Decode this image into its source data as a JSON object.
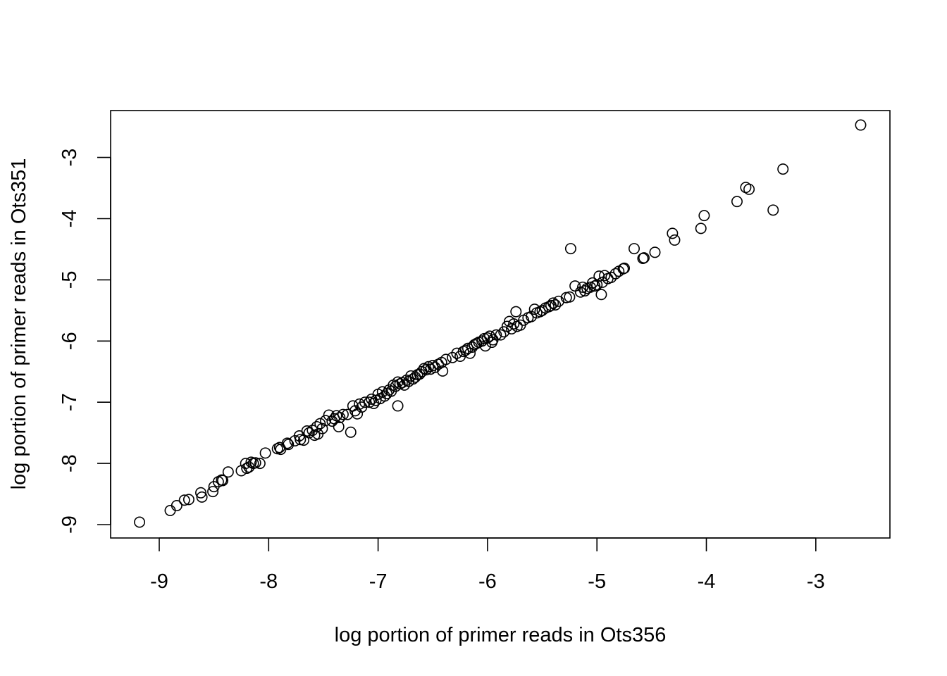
{
  "chart_data": {
    "type": "scatter",
    "title": "",
    "xlabel": "log portion of primer reads in Ots356",
    "ylabel": "log portion of primer reads in Ots351",
    "xlim": [
      -9.45,
      -2.3
    ],
    "ylim": [
      -9.2,
      -2.2
    ],
    "xticks": [
      -9,
      -8,
      -7,
      -6,
      -5,
      -4,
      -3
    ],
    "yticks": [
      -9,
      -8,
      -7,
      -6,
      -5,
      -4,
      -3
    ],
    "xtick_labels": [
      "-9",
      "-8",
      "-7",
      "-6",
      "-5",
      "-4",
      "-3"
    ],
    "ytick_labels": [
      "-9",
      "-8",
      "-7",
      "-6",
      "-5",
      "-4",
      "-3"
    ],
    "grid": false,
    "marker": "open-circle",
    "series": [
      {
        "points": [
          [
            -9.18,
            -8.96
          ],
          [
            -8.9,
            -8.77
          ],
          [
            -8.84,
            -8.69
          ],
          [
            -8.77,
            -8.6
          ],
          [
            -8.73,
            -8.59
          ],
          [
            -8.62,
            -8.48
          ],
          [
            -8.61,
            -8.55
          ],
          [
            -8.51,
            -8.46
          ],
          [
            -8.5,
            -8.38
          ],
          [
            -8.46,
            -8.3
          ],
          [
            -8.43,
            -8.27
          ],
          [
            -8.42,
            -8.28
          ],
          [
            -8.37,
            -8.14
          ],
          [
            -8.25,
            -8.12
          ],
          [
            -8.21,
            -8.0
          ],
          [
            -8.2,
            -8.08
          ],
          [
            -8.18,
            -8.06
          ],
          [
            -8.16,
            -7.98
          ],
          [
            -8.14,
            -8.0
          ],
          [
            -8.12,
            -7.99
          ],
          [
            -8.08,
            -8.0
          ],
          [
            -8.03,
            -7.83
          ],
          [
            -7.92,
            -7.76
          ],
          [
            -7.9,
            -7.74
          ],
          [
            -7.89,
            -7.77
          ],
          [
            -7.83,
            -7.67
          ],
          [
            -7.82,
            -7.69
          ],
          [
            -7.76,
            -7.63
          ],
          [
            -7.72,
            -7.55
          ],
          [
            -7.71,
            -7.61
          ],
          [
            -7.68,
            -7.62
          ],
          [
            -7.65,
            -7.47
          ],
          [
            -7.63,
            -7.5
          ],
          [
            -7.6,
            -7.46
          ],
          [
            -7.58,
            -7.54
          ],
          [
            -7.56,
            -7.4
          ],
          [
            -7.55,
            -7.52
          ],
          [
            -7.53,
            -7.35
          ],
          [
            -7.51,
            -7.43
          ],
          [
            -7.48,
            -7.3
          ],
          [
            -7.45,
            -7.21
          ],
          [
            -7.42,
            -7.31
          ],
          [
            -7.4,
            -7.27
          ],
          [
            -7.38,
            -7.22
          ],
          [
            -7.36,
            -7.4
          ],
          [
            -7.35,
            -7.25
          ],
          [
            -7.32,
            -7.2
          ],
          [
            -7.28,
            -7.2
          ],
          [
            -7.25,
            -7.49
          ],
          [
            -7.23,
            -7.06
          ],
          [
            -7.21,
            -7.14
          ],
          [
            -7.19,
            -7.19
          ],
          [
            -7.17,
            -7.03
          ],
          [
            -7.15,
            -7.08
          ],
          [
            -7.12,
            -7.0
          ],
          [
            -7.08,
            -7.0
          ],
          [
            -7.06,
            -6.95
          ],
          [
            -7.04,
            -7.02
          ],
          [
            -7.02,
            -6.97
          ],
          [
            -7.0,
            -6.87
          ],
          [
            -6.98,
            -6.94
          ],
          [
            -6.96,
            -6.83
          ],
          [
            -6.94,
            -6.9
          ],
          [
            -6.92,
            -6.86
          ],
          [
            -6.9,
            -6.8
          ],
          [
            -6.88,
            -6.82
          ],
          [
            -6.86,
            -6.72
          ],
          [
            -6.84,
            -6.74
          ],
          [
            -6.82,
            -6.67
          ],
          [
            -6.82,
            -7.06
          ],
          [
            -6.8,
            -6.7
          ],
          [
            -6.78,
            -6.68
          ],
          [
            -6.76,
            -6.72
          ],
          [
            -6.74,
            -6.64
          ],
          [
            -6.72,
            -6.66
          ],
          [
            -6.7,
            -6.57
          ],
          [
            -6.68,
            -6.62
          ],
          [
            -6.66,
            -6.59
          ],
          [
            -6.64,
            -6.55
          ],
          [
            -6.62,
            -6.54
          ],
          [
            -6.6,
            -6.5
          ],
          [
            -6.58,
            -6.45
          ],
          [
            -6.56,
            -6.47
          ],
          [
            -6.54,
            -6.42
          ],
          [
            -6.52,
            -6.46
          ],
          [
            -6.5,
            -6.4
          ],
          [
            -6.48,
            -6.43
          ],
          [
            -6.45,
            -6.38
          ],
          [
            -6.42,
            -6.35
          ],
          [
            -6.41,
            -6.49
          ],
          [
            -6.38,
            -6.3
          ],
          [
            -6.32,
            -6.27
          ],
          [
            -6.28,
            -6.2
          ],
          [
            -6.25,
            -6.25
          ],
          [
            -6.22,
            -6.17
          ],
          [
            -6.2,
            -6.15
          ],
          [
            -6.18,
            -6.12
          ],
          [
            -6.16,
            -6.2
          ],
          [
            -6.14,
            -6.1
          ],
          [
            -6.12,
            -6.06
          ],
          [
            -6.1,
            -6.04
          ],
          [
            -6.08,
            -6.02
          ],
          [
            -6.05,
            -6.0
          ],
          [
            -6.03,
            -5.96
          ],
          [
            -6.02,
            -6.08
          ],
          [
            -6.0,
            -5.95
          ],
          [
            -5.98,
            -5.92
          ],
          [
            -5.96,
            -6.02
          ],
          [
            -5.95,
            -5.98
          ],
          [
            -5.92,
            -5.9
          ],
          [
            -5.88,
            -5.9
          ],
          [
            -5.85,
            -5.85
          ],
          [
            -5.82,
            -5.76
          ],
          [
            -5.8,
            -5.68
          ],
          [
            -5.78,
            -5.8
          ],
          [
            -5.76,
            -5.72
          ],
          [
            -5.74,
            -5.52
          ],
          [
            -5.73,
            -5.76
          ],
          [
            -5.7,
            -5.74
          ],
          [
            -5.67,
            -5.66
          ],
          [
            -5.63,
            -5.62
          ],
          [
            -5.6,
            -5.6
          ],
          [
            -5.57,
            -5.48
          ],
          [
            -5.55,
            -5.54
          ],
          [
            -5.52,
            -5.52
          ],
          [
            -5.5,
            -5.5
          ],
          [
            -5.47,
            -5.46
          ],
          [
            -5.44,
            -5.44
          ],
          [
            -5.42,
            -5.42
          ],
          [
            -5.4,
            -5.38
          ],
          [
            -5.38,
            -5.41
          ],
          [
            -5.35,
            -5.35
          ],
          [
            -5.28,
            -5.29
          ],
          [
            -5.25,
            -5.28
          ],
          [
            -5.24,
            -4.49
          ],
          [
            -5.2,
            -5.1
          ],
          [
            -5.15,
            -5.2
          ],
          [
            -5.13,
            -5.12
          ],
          [
            -5.11,
            -5.18
          ],
          [
            -5.09,
            -5.14
          ],
          [
            -5.06,
            -5.12
          ],
          [
            -5.04,
            -5.05
          ],
          [
            -5.02,
            -5.1
          ],
          [
            -5.0,
            -5.08
          ],
          [
            -4.98,
            -4.94
          ],
          [
            -4.96,
            -5.24
          ],
          [
            -4.95,
            -5.04
          ],
          [
            -4.93,
            -4.93
          ],
          [
            -4.9,
            -4.98
          ],
          [
            -4.87,
            -4.96
          ],
          [
            -4.83,
            -4.9
          ],
          [
            -4.8,
            -4.86
          ],
          [
            -4.76,
            -4.82
          ],
          [
            -4.75,
            -4.81
          ],
          [
            -4.66,
            -4.49
          ],
          [
            -4.58,
            -4.65
          ],
          [
            -4.57,
            -4.64
          ],
          [
            -4.47,
            -4.55
          ],
          [
            -4.31,
            -4.24
          ],
          [
            -4.29,
            -4.35
          ],
          [
            -4.05,
            -4.16
          ],
          [
            -4.02,
            -3.95
          ],
          [
            -3.72,
            -3.72
          ],
          [
            -3.64,
            -3.49
          ],
          [
            -3.61,
            -3.52
          ],
          [
            -3.39,
            -3.86
          ],
          [
            -3.3,
            -3.19
          ],
          [
            -2.59,
            -2.47
          ]
        ]
      }
    ]
  }
}
